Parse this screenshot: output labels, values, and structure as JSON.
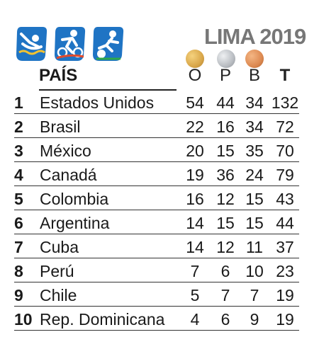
{
  "event": {
    "title": "LIMA 2019"
  },
  "icons": [
    "swimming-icon",
    "cycling-icon",
    "football-icon"
  ],
  "colors": {
    "icon_blue": "#1f74c4",
    "gold": "#d9a74a",
    "silver": "#b9bdc2",
    "bronze": "#dd8a52"
  },
  "headers": {
    "country": "PAÍS",
    "gold": "O",
    "silver": "P",
    "bronze": "B",
    "total": "T"
  },
  "rows": [
    {
      "rank": "1",
      "country": "Estados Unidos",
      "gold": "54",
      "silver": "44",
      "bronze": "34",
      "total": "132"
    },
    {
      "rank": "2",
      "country": "Brasil",
      "gold": "22",
      "silver": "16",
      "bronze": "34",
      "total": "72"
    },
    {
      "rank": "3",
      "country": "México",
      "gold": "20",
      "silver": "15",
      "bronze": "35",
      "total": "70"
    },
    {
      "rank": "4",
      "country": "Canadá",
      "gold": "19",
      "silver": "36",
      "bronze": "24",
      "total": "79"
    },
    {
      "rank": "5",
      "country": "Colombia",
      "gold": "16",
      "silver": "12",
      "bronze": "15",
      "total": "43"
    },
    {
      "rank": "6",
      "country": "Argentina",
      "gold": "14",
      "silver": "15",
      "bronze": "15",
      "total": "44"
    },
    {
      "rank": "7",
      "country": "Cuba",
      "gold": "14",
      "silver": "12",
      "bronze": "11",
      "total": "37"
    },
    {
      "rank": "8",
      "country": "Perú",
      "gold": "7",
      "silver": "6",
      "bronze": "10",
      "total": "23"
    },
    {
      "rank": "9",
      "country": "Chile",
      "gold": "5",
      "silver": "7",
      "bronze": "7",
      "total": "19"
    },
    {
      "rank": "10",
      "country": "Rep. Dominicana",
      "gold": "4",
      "silver": "6",
      "bronze": "9",
      "total": "19"
    }
  ]
}
